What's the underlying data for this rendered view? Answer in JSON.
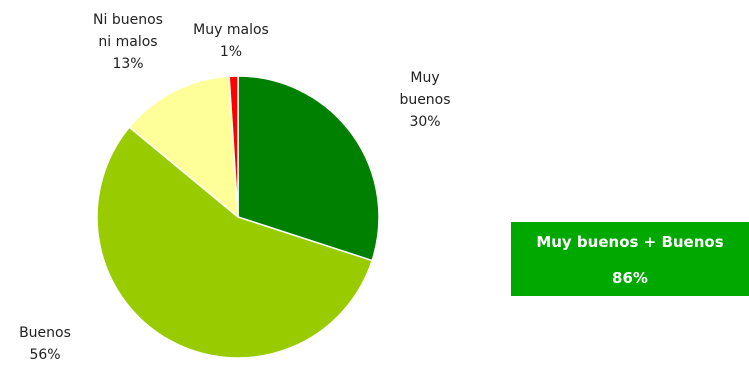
{
  "chart_data": {
    "type": "pie",
    "slices": [
      {
        "label_lines": [
          "Muy",
          "buenos"
        ],
        "value": 30,
        "value_label": "30%",
        "color": "#008000"
      },
      {
        "label_lines": [
          "Buenos"
        ],
        "value": 56,
        "value_label": "56%",
        "color": "#99cc00"
      },
      {
        "label_lines": [
          "Ni buenos",
          "ni malos"
        ],
        "value": 13,
        "value_label": "13%",
        "color": "#ffff99"
      },
      {
        "label_lines": [
          "Muy malos"
        ],
        "value": 1,
        "value_label": "1%",
        "color": "#ff0000"
      }
    ]
  },
  "summary": {
    "title": "Muy buenos + Buenos",
    "value": "86%",
    "color": "#00a800"
  }
}
